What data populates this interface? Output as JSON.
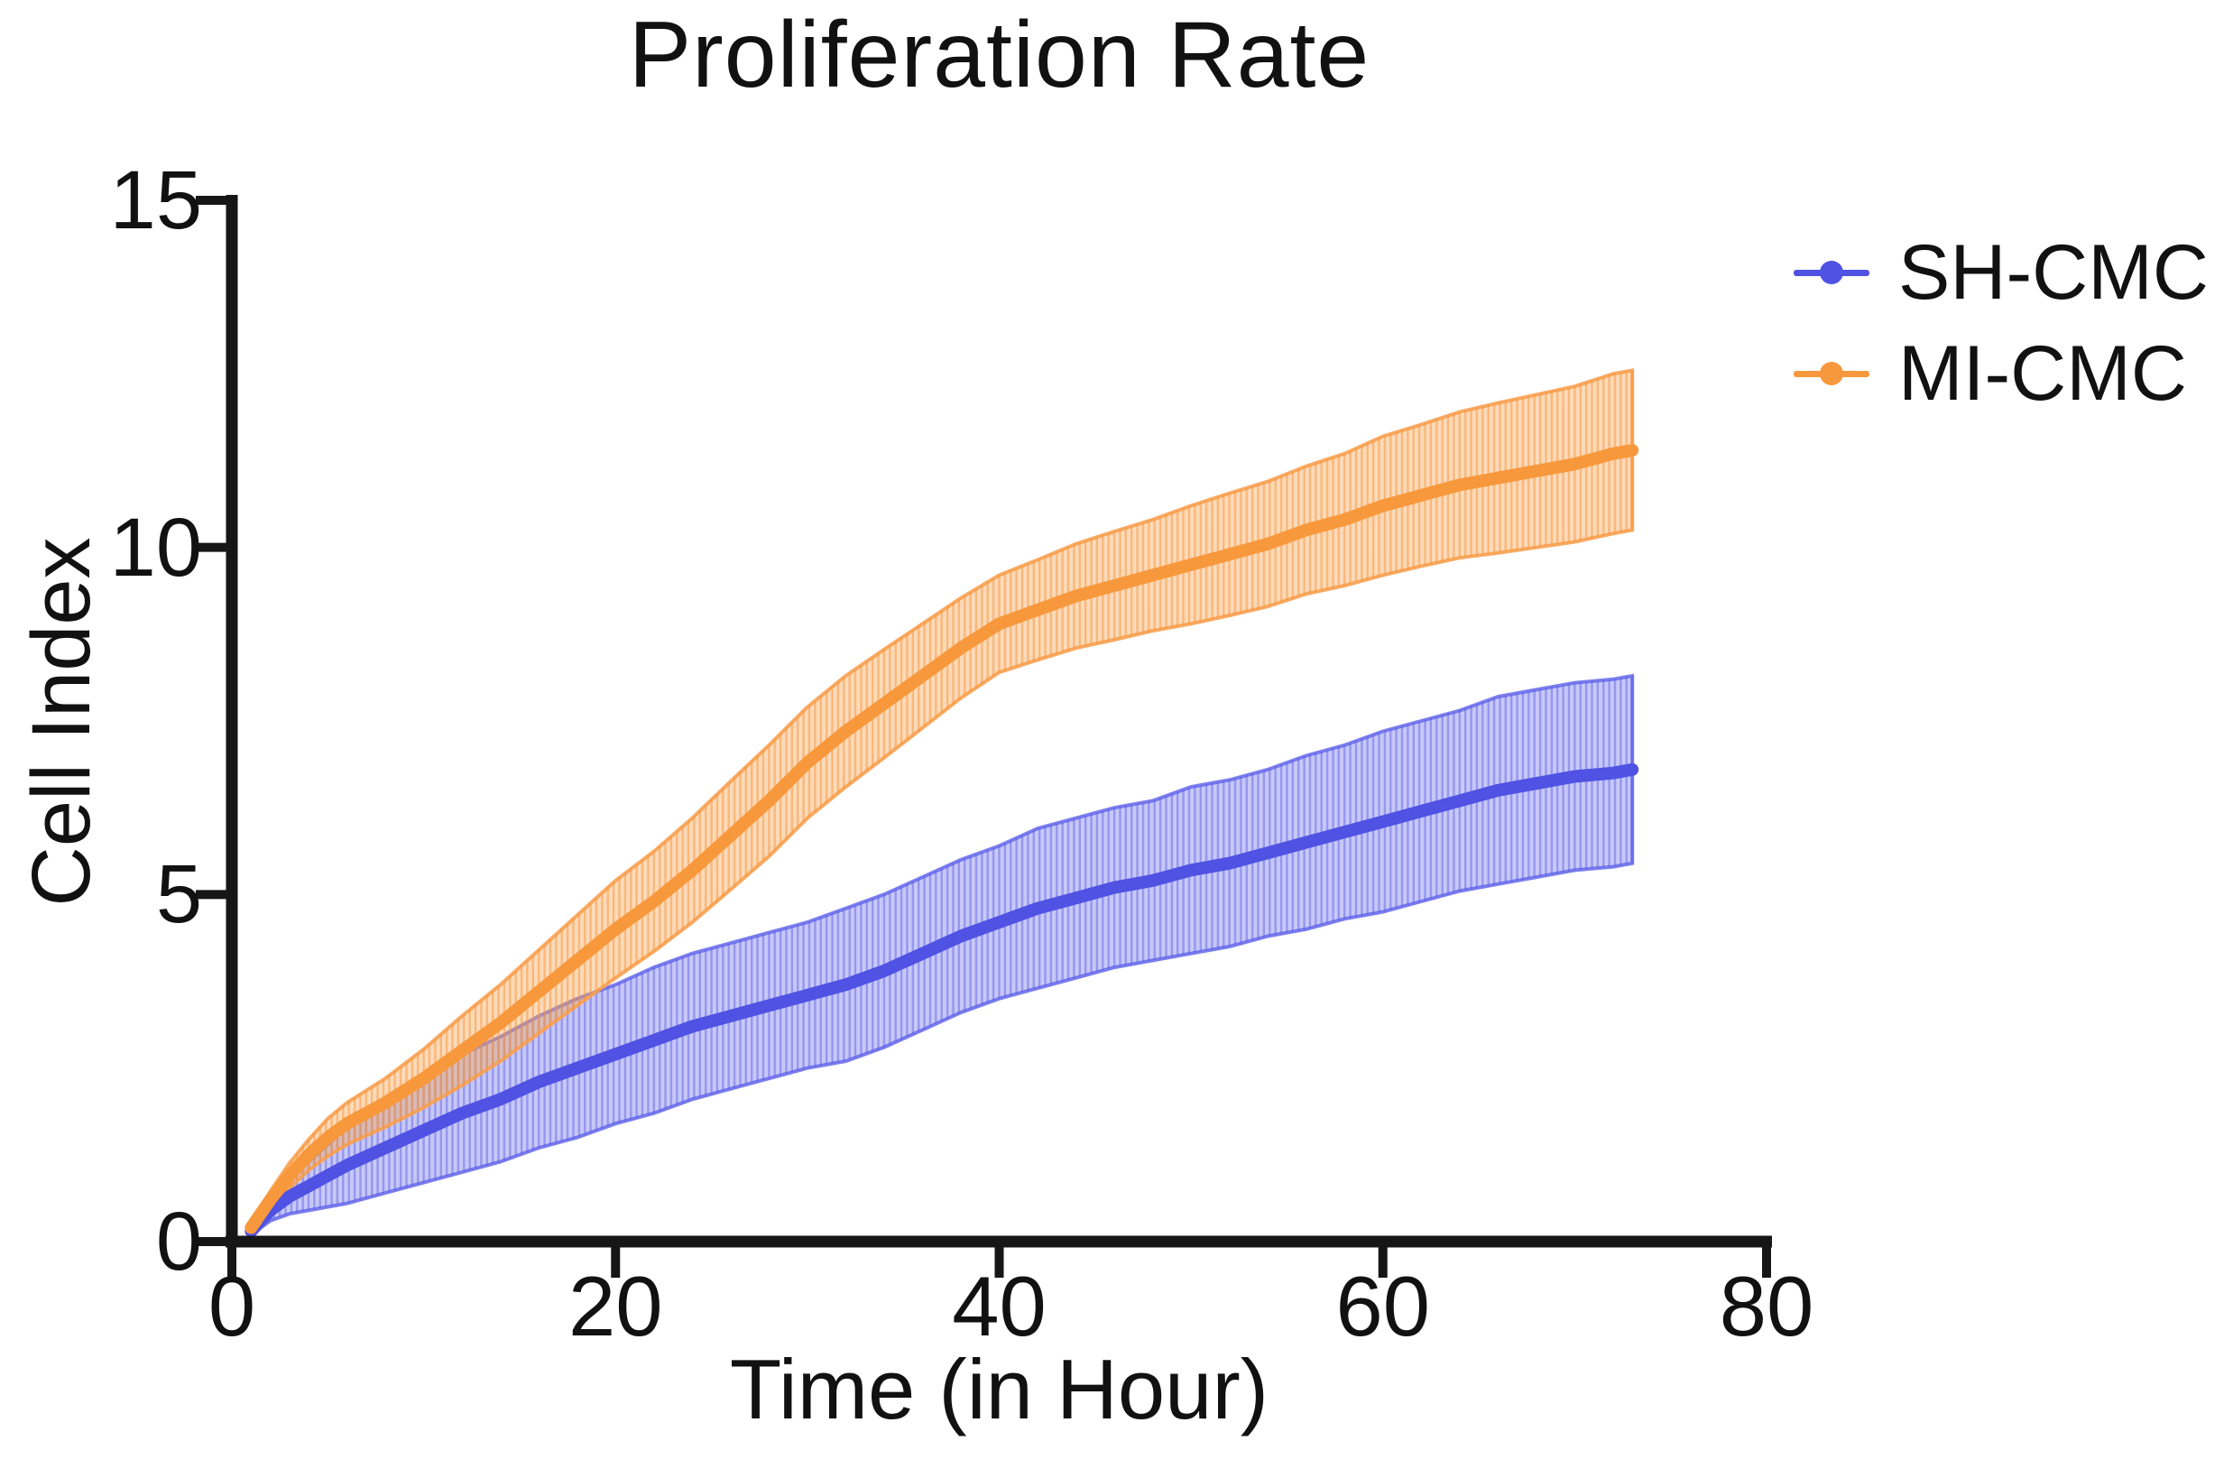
{
  "chart_data": {
    "type": "line",
    "title": "Proliferation Rate",
    "xlabel": "Time (in Hour)",
    "ylabel": "Cell Index",
    "xlim": [
      0,
      80
    ],
    "ylim": [
      0,
      15
    ],
    "x_ticks": [
      0,
      20,
      40,
      60,
      80
    ],
    "y_ticks": [
      0,
      5,
      10,
      15
    ],
    "grid": false,
    "legend_position": "right",
    "error_bars": "vertical error bars forming shaded bands",
    "x": [
      1,
      2,
      3,
      4,
      5,
      6,
      8,
      10,
      12,
      14,
      16,
      18,
      20,
      22,
      24,
      26,
      28,
      30,
      32,
      34,
      36,
      38,
      40,
      42,
      44,
      46,
      48,
      50,
      52,
      54,
      56,
      58,
      60,
      62,
      64,
      66,
      68,
      70,
      72,
      73
    ],
    "series": [
      {
        "name": "SH-CMC",
        "color": "#4F52E2",
        "band_fill": "rgba(122,124,235,0.42)",
        "stripe_color": "rgba(88,91,228,0.45)",
        "edge_color": "rgba(108,111,235,0.9)",
        "values": [
          0.15,
          0.45,
          0.65,
          0.8,
          0.95,
          1.1,
          1.35,
          1.6,
          1.85,
          2.05,
          2.3,
          2.5,
          2.7,
          2.9,
          3.1,
          3.25,
          3.4,
          3.55,
          3.7,
          3.9,
          4.15,
          4.4,
          4.6,
          4.8,
          4.95,
          5.1,
          5.2,
          5.35,
          5.45,
          5.6,
          5.75,
          5.9,
          6.05,
          6.2,
          6.35,
          6.5,
          6.6,
          6.7,
          6.75,
          6.8
        ],
        "sd": [
          0.05,
          0.15,
          0.25,
          0.35,
          0.45,
          0.55,
          0.65,
          0.75,
          0.85,
          0.9,
          0.95,
          1.0,
          1.0,
          1.05,
          1.05,
          1.05,
          1.05,
          1.05,
          1.1,
          1.1,
          1.1,
          1.1,
          1.1,
          1.15,
          1.15,
          1.15,
          1.15,
          1.2,
          1.2,
          1.2,
          1.25,
          1.25,
          1.3,
          1.3,
          1.3,
          1.35,
          1.35,
          1.35,
          1.35,
          1.35
        ]
      },
      {
        "name": "MI-CMC",
        "color": "#F8983C",
        "band_fill": "rgba(248,166,89,0.42)",
        "stripe_color": "rgba(246,150,60,0.5)",
        "edge_color": "rgba(248,160,80,0.9)",
        "values": [
          0.2,
          0.6,
          0.95,
          1.25,
          1.5,
          1.7,
          2.0,
          2.35,
          2.75,
          3.15,
          3.6,
          4.05,
          4.5,
          4.9,
          5.35,
          5.85,
          6.35,
          6.9,
          7.35,
          7.75,
          8.15,
          8.55,
          8.9,
          9.1,
          9.3,
          9.45,
          9.6,
          9.75,
          9.9,
          10.05,
          10.25,
          10.4,
          10.6,
          10.75,
          10.9,
          11.0,
          11.1,
          11.2,
          11.35,
          11.4
        ],
        "sd": [
          0.05,
          0.12,
          0.18,
          0.22,
          0.27,
          0.3,
          0.35,
          0.42,
          0.5,
          0.55,
          0.6,
          0.65,
          0.7,
          0.72,
          0.75,
          0.78,
          0.8,
          0.8,
          0.8,
          0.78,
          0.75,
          0.72,
          0.7,
          0.72,
          0.75,
          0.78,
          0.8,
          0.85,
          0.88,
          0.9,
          0.92,
          0.95,
          1.0,
          1.02,
          1.05,
          1.08,
          1.1,
          1.12,
          1.15,
          1.15
        ]
      }
    ],
    "axis_color": "#161616"
  }
}
